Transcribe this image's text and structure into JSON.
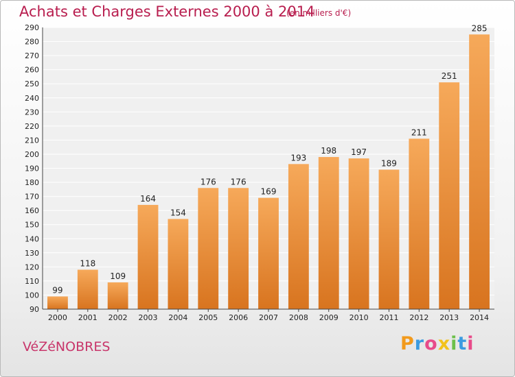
{
  "header": {
    "title": "Achats et Charges Externes 2000 à 2014",
    "unit": "(en milliers d'€)"
  },
  "footer": {
    "commune": "VéZéNOBRES",
    "logo": "Proxiti"
  },
  "colors": {
    "title": "#b81d4e",
    "bar_light": "#f6a95a",
    "bar_dark": "#d8741f",
    "logo_letters": [
      "#f29a1c",
      "#3b9be0",
      "#e84b8a",
      "#f2c21c",
      "#6cc04a",
      "#3b9be0",
      "#e84b8a"
    ]
  },
  "chart_data": {
    "type": "bar",
    "categories": [
      "2000",
      "2001",
      "2002",
      "2003",
      "2004",
      "2005",
      "2006",
      "2007",
      "2008",
      "2009",
      "2010",
      "2011",
      "2012",
      "2013",
      "2014"
    ],
    "values": [
      99,
      118,
      109,
      164,
      154,
      176,
      176,
      169,
      193,
      198,
      197,
      189,
      211,
      251,
      285
    ],
    "ylim": [
      90,
      290
    ],
    "yticks": [
      90,
      100,
      110,
      120,
      130,
      140,
      150,
      160,
      170,
      180,
      190,
      200,
      210,
      220,
      230,
      240,
      250,
      260,
      270,
      280,
      290
    ],
    "grid": true,
    "xlabel": "",
    "ylabel": ""
  }
}
